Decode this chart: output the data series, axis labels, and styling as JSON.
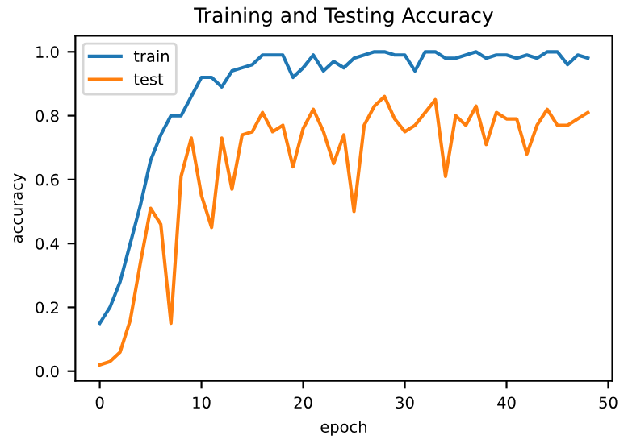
{
  "chart_data": {
    "type": "line",
    "title": "Training and Testing Accuracy",
    "xlabel": "epoch",
    "ylabel": "accuracy",
    "x": [
      0,
      1,
      2,
      3,
      4,
      5,
      6,
      7,
      8,
      9,
      10,
      11,
      12,
      13,
      14,
      15,
      16,
      17,
      18,
      19,
      20,
      21,
      22,
      23,
      24,
      25,
      26,
      27,
      28,
      29,
      30,
      31,
      32,
      33,
      34,
      35,
      36,
      37,
      38,
      39,
      40,
      41,
      42,
      43,
      44,
      45,
      46,
      47,
      48
    ],
    "series": [
      {
        "name": "train",
        "color": "#1f77b4",
        "values": [
          0.15,
          0.2,
          0.28,
          0.4,
          0.52,
          0.66,
          0.74,
          0.8,
          0.8,
          0.86,
          0.92,
          0.92,
          0.89,
          0.94,
          0.95,
          0.96,
          0.99,
          0.99,
          0.99,
          0.92,
          0.95,
          0.99,
          0.94,
          0.97,
          0.95,
          0.98,
          0.99,
          1.0,
          1.0,
          0.99,
          0.99,
          0.94,
          1.0,
          1.0,
          0.98,
          0.98,
          0.99,
          1.0,
          0.98,
          0.99,
          0.99,
          0.98,
          0.99,
          0.98,
          1.0,
          1.0,
          0.96,
          0.99,
          0.98
        ]
      },
      {
        "name": "test",
        "color": "#ff7f0e",
        "values": [
          0.02,
          0.03,
          0.06,
          0.16,
          0.34,
          0.51,
          0.46,
          0.15,
          0.61,
          0.73,
          0.55,
          0.45,
          0.73,
          0.57,
          0.74,
          0.75,
          0.81,
          0.75,
          0.77,
          0.64,
          0.76,
          0.82,
          0.75,
          0.65,
          0.74,
          0.5,
          0.77,
          0.83,
          0.86,
          0.79,
          0.75,
          0.77,
          0.81,
          0.85,
          0.61,
          0.8,
          0.77,
          0.83,
          0.71,
          0.81,
          0.79,
          0.79,
          0.68,
          0.77,
          0.82,
          0.77,
          0.77,
          0.79,
          0.81
        ]
      }
    ],
    "xlim": [
      -2.4,
      50.4
    ],
    "ylim": [
      -0.03,
      1.05
    ],
    "xticks": [
      0,
      10,
      20,
      30,
      40,
      50
    ],
    "yticks": [
      {
        "value": 0,
        "label": "0.0"
      },
      0.2,
      0.4,
      0.6,
      0.8,
      {
        "value": 1,
        "label": "1.0"
      }
    ],
    "legend": "upper left",
    "grid": false,
    "marker": "none",
    "line_style": "solid"
  }
}
